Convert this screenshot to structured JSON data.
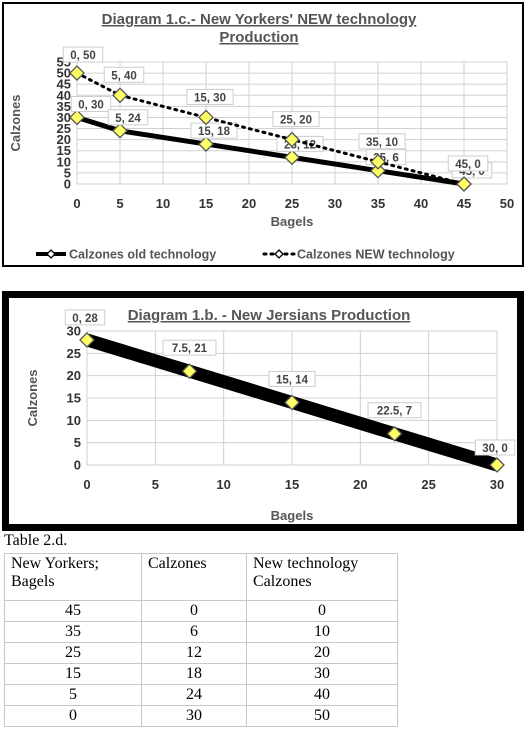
{
  "chart_data": [
    {
      "type": "line",
      "title": "Diagram 1.c.- New Yorkers' NEW technology Production",
      "title_lines": [
        "Diagram 1.c.- New Yorkers' NEW technology",
        "Production"
      ],
      "xlabel": "Bagels",
      "ylabel": "Calzones",
      "xlim": [
        0,
        50
      ],
      "ylim": [
        0,
        55
      ],
      "xticks": [
        0,
        5,
        10,
        15,
        20,
        25,
        30,
        35,
        40,
        45,
        50
      ],
      "yticks": [
        0,
        5,
        10,
        15,
        20,
        25,
        30,
        35,
        40,
        45,
        50,
        55
      ],
      "grid": true,
      "legend_position": "bottom",
      "series": [
        {
          "name": "Calzones old technology",
          "style": "solid",
          "color": "#000000",
          "points": [
            [
              0,
              30
            ],
            [
              5,
              24
            ],
            [
              15,
              18
            ],
            [
              25,
              12
            ],
            [
              35,
              6
            ],
            [
              45,
              0
            ]
          ],
          "labels": [
            "0, 30",
            "5, 24",
            "15, 18",
            "25, 12",
            "35, 6",
            "45, 0"
          ]
        },
        {
          "name": "Calzones NEW technology",
          "style": "dotted",
          "color": "#000000",
          "points": [
            [
              0,
              50
            ],
            [
              5,
              40
            ],
            [
              15,
              30
            ],
            [
              25,
              20
            ],
            [
              35,
              10
            ],
            [
              45,
              0
            ]
          ],
          "labels": [
            "0, 50",
            "5, 40",
            "15, 30",
            "25, 20",
            "35, 10",
            "45, 0"
          ]
        }
      ]
    },
    {
      "type": "line",
      "title": "Diagram 1.b. - New Jersians Production",
      "xlabel": "Bagels",
      "ylabel": "Calzones",
      "xlim": [
        0,
        30
      ],
      "ylim": [
        0,
        30
      ],
      "xticks": [
        0,
        5,
        10,
        15,
        20,
        25,
        30
      ],
      "yticks": [
        0,
        5,
        10,
        15,
        20,
        25,
        30
      ],
      "grid": true,
      "series": [
        {
          "name": "",
          "style": "thick",
          "color": "#000000",
          "points": [
            [
              0,
              28
            ],
            [
              7.5,
              21
            ],
            [
              15,
              14
            ],
            [
              22.5,
              7
            ],
            [
              30,
              0
            ]
          ],
          "labels": [
            "0, 28",
            "7.5, 21",
            "15, 14",
            "22.5, 7",
            "30, 0"
          ]
        }
      ]
    }
  ],
  "table": {
    "caption": "Table 2.d.",
    "headers": [
      "New Yorkers;\nBagels",
      "Calzones",
      "New technology\nCalzones"
    ],
    "rows": [
      [
        "45",
        "0",
        "0"
      ],
      [
        "35",
        "6",
        "10"
      ],
      [
        "25",
        "12",
        "20"
      ],
      [
        "15",
        "18",
        "30"
      ],
      [
        "5",
        "24",
        "40"
      ],
      [
        "0",
        "30",
        "50"
      ]
    ]
  },
  "colors": {
    "marker_fill": "#ffff66",
    "marker_stroke": "#555555",
    "grid": "#d0d0d0"
  }
}
